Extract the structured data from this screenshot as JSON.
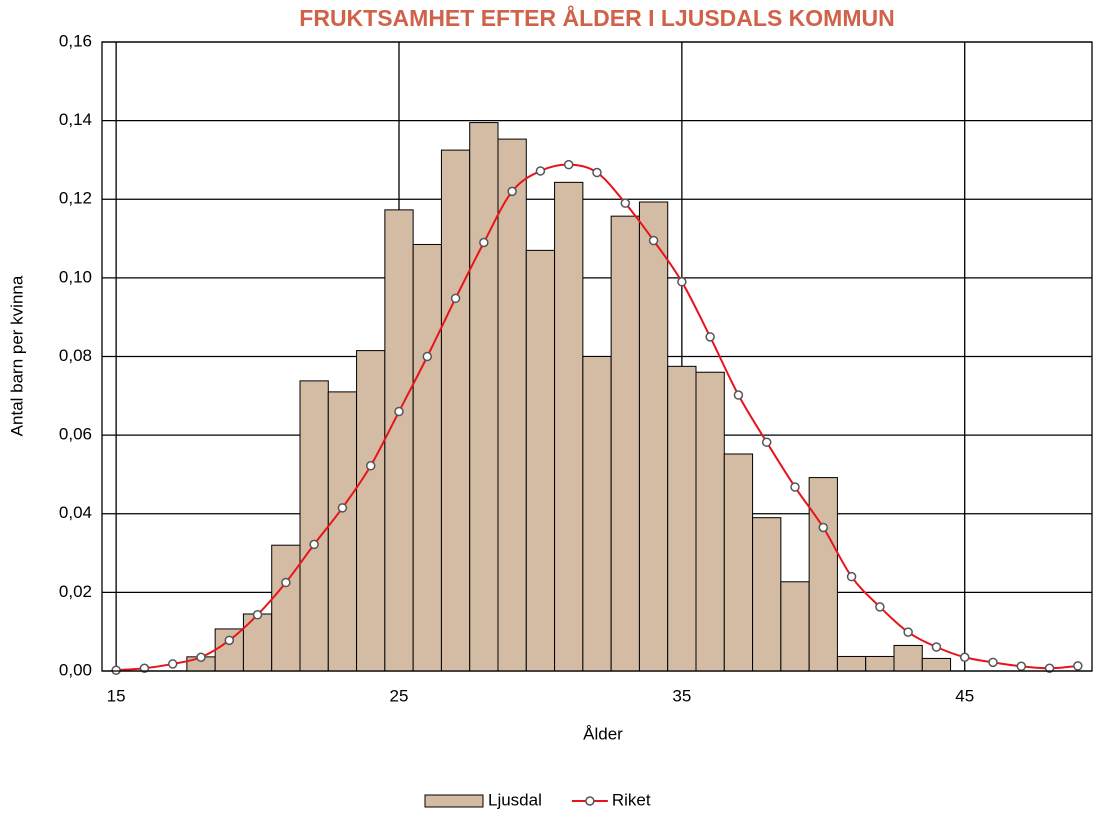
{
  "chart_data": {
    "type": "bar",
    "title": "FRUKTSAMHET EFTER ÅLDER I LJUSDALS KOMMUN",
    "x_label": "Ålder",
    "y_label": "Antal barn per kvinna",
    "x": [
      15,
      16,
      17,
      18,
      19,
      20,
      21,
      22,
      23,
      24,
      25,
      26,
      27,
      28,
      29,
      30,
      31,
      32,
      33,
      34,
      35,
      36,
      37,
      38,
      39,
      40,
      41,
      42,
      43,
      44,
      45,
      46,
      47,
      48,
      49
    ],
    "series": [
      {
        "name": "Ljusdal",
        "type": "bar",
        "color": "#d4bba3",
        "values": [
          0,
          0,
          0,
          0.0036,
          0.0107,
          0.0145,
          0.032,
          0.0738,
          0.071,
          0.0815,
          0.1173,
          0.1085,
          0.1325,
          0.1395,
          0.1353,
          0.107,
          0.1243,
          0.08,
          0.1157,
          0.1193,
          0.0775,
          0.076,
          0.0552,
          0.039,
          0.0227,
          0.0492,
          0.0037,
          0.0037,
          0.0065,
          0.0032,
          0,
          0,
          0,
          0,
          0
        ]
      },
      {
        "name": "Riket",
        "type": "line",
        "color": "#e8141c",
        "values": [
          0.0002,
          0.0007,
          0.0018,
          0.0035,
          0.0078,
          0.0143,
          0.0225,
          0.0322,
          0.0415,
          0.0522,
          0.066,
          0.08,
          0.0948,
          0.109,
          0.122,
          0.1272,
          0.1288,
          0.1268,
          0.119,
          0.1095,
          0.099,
          0.085,
          0.0702,
          0.0582,
          0.0468,
          0.0365,
          0.024,
          0.0163,
          0.0099,
          0.0061,
          0.0035,
          0.0022,
          0.0012,
          0.0007,
          0.0013
        ]
      }
    ],
    "xlim": [
      14.5,
      49.5
    ],
    "xticks": [
      15,
      25,
      35,
      45
    ],
    "ylim": [
      0,
      0.16
    ],
    "yticks": [
      {
        "value": 0,
        "label": "0,00"
      },
      {
        "value": 0.02,
        "label": "0,02"
      },
      {
        "value": 0.04,
        "label": "0,04"
      },
      {
        "value": 0.06,
        "label": "0,06"
      },
      {
        "value": 0.08,
        "label": "0,08"
      },
      {
        "value": 0.1,
        "label": "0,10"
      },
      {
        "value": 0.12,
        "label": "0,12"
      },
      {
        "value": 0.14,
        "label": "0,14"
      },
      {
        "value": 0.16,
        "label": "0,16"
      }
    ],
    "grid": true,
    "legend": "bottom"
  }
}
